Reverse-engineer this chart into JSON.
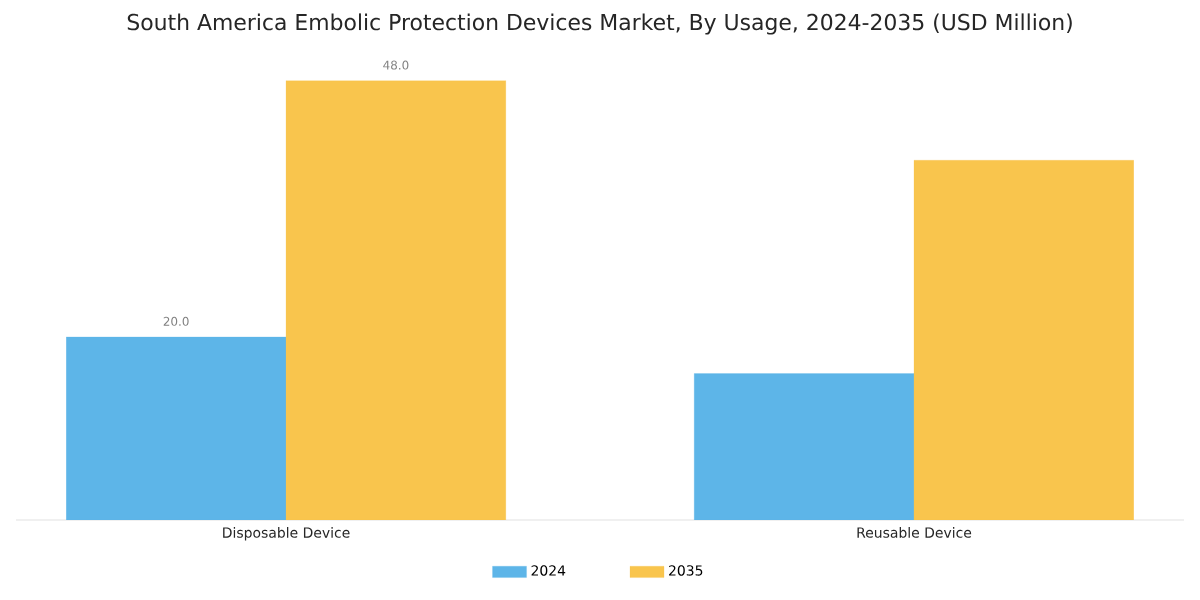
{
  "chart_data": {
    "type": "bar",
    "title": "South America Embolic Protection Devices Market, By Usage, 2024-2035 (USD Million)",
    "categories": [
      "Disposable Device",
      "Reusable Device"
    ],
    "series": [
      {
        "name": "2024",
        "color": "#5db5e8",
        "values": [
          20.0,
          16.0
        ],
        "value_labels": [
          "20.0",
          null
        ]
      },
      {
        "name": "2035",
        "color": "#f9c54d",
        "values": [
          48.0,
          39.3
        ],
        "value_labels": [
          "48.0",
          null
        ]
      }
    ],
    "legend": "bottom"
  }
}
